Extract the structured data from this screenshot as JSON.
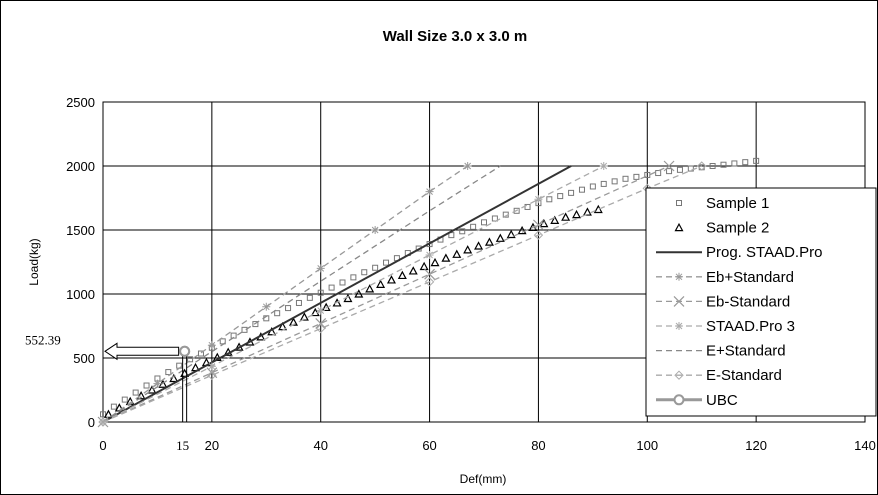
{
  "chart_data": {
    "type": "scatter",
    "title": "Wall Size 3.0 x 3.0 m",
    "xlabel": "Def(mm)",
    "ylabel": "Load(kg)",
    "xlim": [
      0,
      140
    ],
    "ylim": [
      0,
      2500
    ],
    "xticks": [
      "0",
      "20",
      "40",
      "60",
      "80",
      "100",
      "120",
      "140"
    ],
    "yticks": [
      "0",
      "500",
      "1000",
      "1500",
      "2000",
      "2500"
    ],
    "grid": true,
    "legend_position": "right",
    "annotations": [
      {
        "text": "552.39",
        "x": 0,
        "y": 552.39
      },
      {
        "text": "15",
        "x": 15,
        "y": 0
      }
    ],
    "series": [
      {
        "name": "Sample 1",
        "style": "square-marker",
        "color": "#777777",
        "x": [
          0,
          2,
          4,
          6,
          8,
          10,
          12,
          14,
          16,
          18,
          20,
          22,
          24,
          26,
          28,
          30,
          32,
          34,
          36,
          38,
          40,
          42,
          44,
          46,
          48,
          50,
          52,
          54,
          56,
          58,
          60,
          62,
          64,
          66,
          68,
          70,
          72,
          74,
          76,
          78,
          80,
          82,
          84,
          86,
          88,
          90,
          92,
          94,
          96,
          98,
          100,
          102,
          104,
          106,
          108,
          110,
          112,
          114,
          116,
          118,
          120
        ],
        "y": [
          60,
          120,
          175,
          230,
          285,
          340,
          390,
          440,
          490,
          535,
          580,
          630,
          675,
          720,
          765,
          810,
          850,
          890,
          930,
          970,
          1010,
          1050,
          1090,
          1130,
          1170,
          1205,
          1245,
          1280,
          1320,
          1355,
          1390,
          1425,
          1460,
          1490,
          1525,
          1560,
          1590,
          1620,
          1650,
          1680,
          1710,
          1740,
          1765,
          1790,
          1815,
          1840,
          1860,
          1880,
          1900,
          1915,
          1930,
          1945,
          1960,
          1970,
          1980,
          1990,
          2000,
          2010,
          2020,
          2030,
          2040
        ]
      },
      {
        "name": "Sample 2",
        "style": "triangle-marker",
        "color": "#000000",
        "x": [
          1,
          3,
          5,
          7,
          9,
          11,
          13,
          15,
          17,
          19,
          21,
          23,
          25,
          27,
          29,
          31,
          33,
          35,
          37,
          39,
          41,
          43,
          45,
          47,
          49,
          51,
          53,
          55,
          57,
          59,
          61,
          63,
          65,
          67,
          69,
          71,
          73,
          75,
          77,
          79,
          81,
          83,
          85,
          87,
          89,
          91
        ],
        "y": [
          60,
          110,
          160,
          205,
          250,
          295,
          340,
          380,
          425,
          465,
          505,
          545,
          585,
          625,
          665,
          705,
          745,
          780,
          820,
          855,
          895,
          930,
          965,
          1000,
          1040,
          1075,
          1110,
          1145,
          1180,
          1215,
          1245,
          1280,
          1310,
          1345,
          1375,
          1405,
          1435,
          1465,
          1495,
          1520,
          1550,
          1575,
          1600,
          1620,
          1640,
          1660
        ]
      },
      {
        "name": "Prog. STAAD.Pro",
        "style": "solid-line",
        "color": "#333333",
        "x": [
          0,
          86
        ],
        "y": [
          0,
          2000
        ]
      },
      {
        "name": "Eb+Standard",
        "style": "dash-star-line",
        "color": "#999999",
        "x": [
          0,
          10,
          20,
          30,
          40,
          50,
          60,
          67
        ],
        "y": [
          0,
          300,
          600,
          900,
          1200,
          1500,
          1800,
          2000
        ]
      },
      {
        "name": "Eb-Standard",
        "style": "dash-x-line",
        "color": "#999999",
        "x": [
          0,
          20,
          40,
          60,
          80,
          104
        ],
        "y": [
          0,
          385,
          770,
          1155,
          1540,
          2000
        ]
      },
      {
        "name": "STAAD.Pro 3",
        "style": "dash-star-line",
        "color": "#aaaaaa",
        "x": [
          0,
          20,
          40,
          60,
          80,
          92
        ],
        "y": [
          0,
          435,
          870,
          1305,
          1740,
          2000
        ]
      },
      {
        "name": "E+Standard",
        "style": "dash-line",
        "color": "#888888",
        "x": [
          0,
          20,
          40,
          60,
          73
        ],
        "y": [
          0,
          550,
          1100,
          1650,
          2000
        ]
      },
      {
        "name": "E-Standard",
        "style": "dash-diamond-line",
        "color": "#aaaaaa",
        "x": [
          0,
          20,
          40,
          60,
          80,
          100,
          110
        ],
        "y": [
          0,
          365,
          730,
          1095,
          1460,
          1825,
          2000
        ]
      },
      {
        "name": "UBC",
        "style": "circle-line",
        "color": "#999999",
        "x": [
          15
        ],
        "y": [
          552.39
        ]
      }
    ]
  }
}
